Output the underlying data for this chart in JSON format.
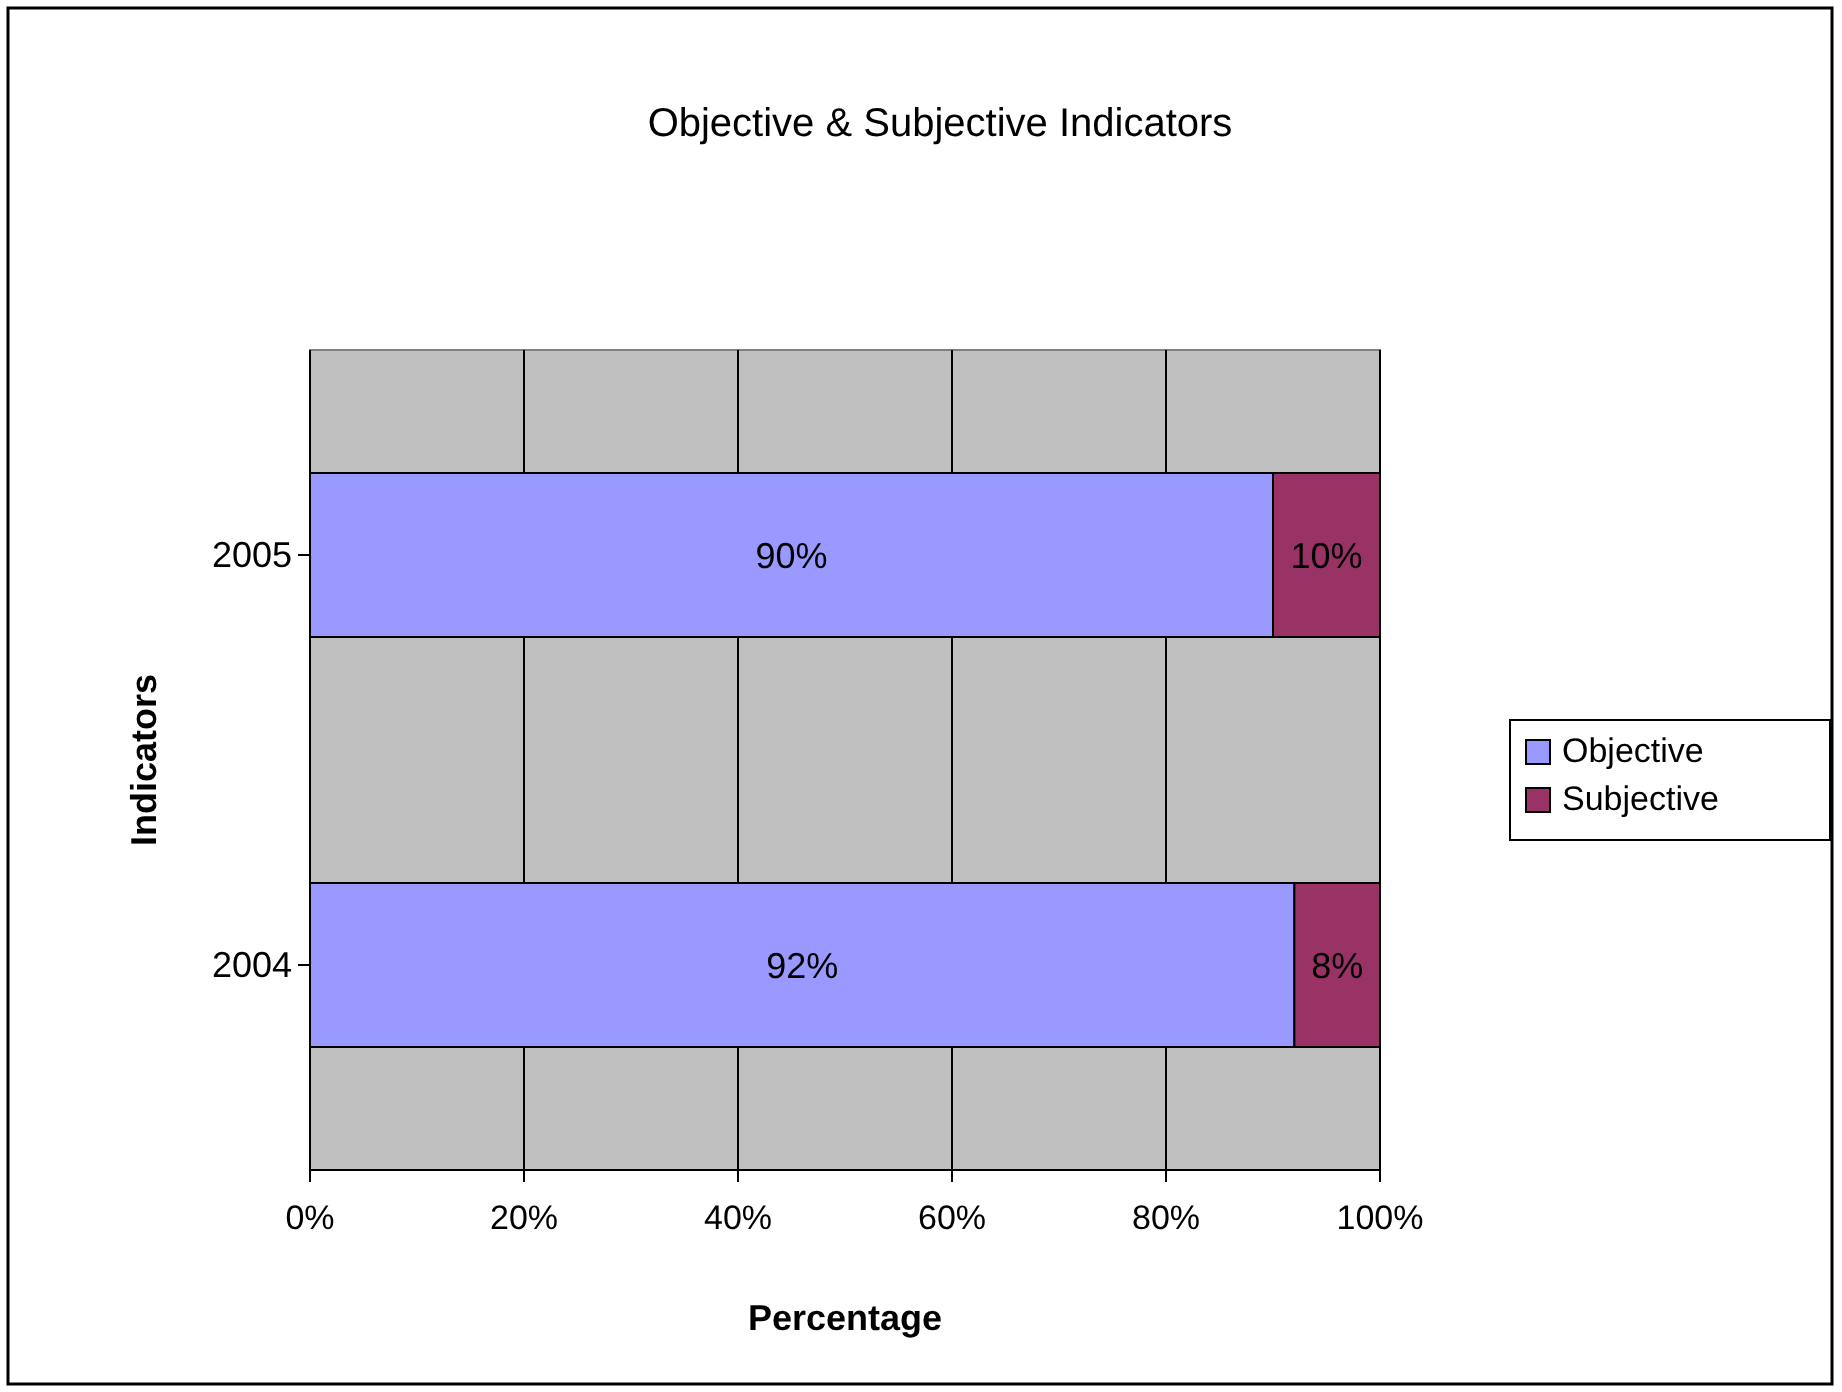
{
  "chart_data": {
    "type": "bar",
    "title": "Objective & Subjective Indicators",
    "xlabel": "Percentage",
    "ylabel": "Indicators",
    "orientation": "horizontal",
    "stacked": true,
    "categories": [
      "2005",
      "2004"
    ],
    "series": [
      {
        "name": "Objective",
        "color": "#9999ff",
        "values": [
          90,
          92
        ],
        "value_labels": [
          "90%",
          "92%"
        ]
      },
      {
        "name": "Subjective",
        "color": "#993366",
        "values": [
          10,
          8
        ],
        "value_labels": [
          "10%",
          "8%"
        ]
      }
    ],
    "xlim": [
      0,
      100
    ],
    "xticks": [
      {
        "value": 0,
        "label": "0%"
      },
      {
        "value": 20,
        "label": "20%"
      },
      {
        "value": 40,
        "label": "40%"
      },
      {
        "value": 60,
        "label": "60%"
      },
      {
        "value": 80,
        "label": "80%"
      },
      {
        "value": 100,
        "label": "100%"
      }
    ],
    "grid": "x",
    "legend": "right"
  }
}
